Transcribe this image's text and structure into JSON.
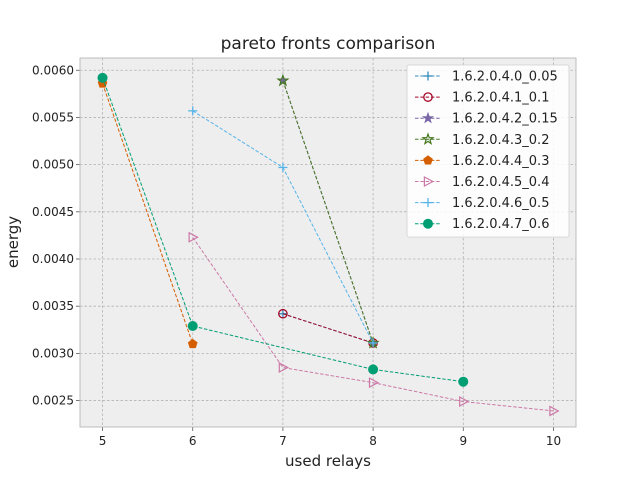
{
  "chart_data": {
    "type": "line",
    "title": "pareto fronts comparison",
    "xlabel": "used relays",
    "ylabel": "energy",
    "xlim": [
      4.75,
      10.25
    ],
    "ylim": [
      0.00222,
      0.00613
    ],
    "xticks": [
      5,
      6,
      7,
      8,
      9,
      10
    ],
    "yticks": [
      0.0025,
      0.003,
      0.0035,
      0.004,
      0.0045,
      0.005,
      0.0055,
      0.006
    ],
    "ytick_labels": [
      "0.0025",
      "0.0030",
      "0.0035",
      "0.0040",
      "0.0045",
      "0.0050",
      "0.0055",
      "0.0060"
    ],
    "grid": true,
    "legend_position": "top-right",
    "series": [
      {
        "name": "1.6.2.0.4.0_0.05",
        "color": "#348abd",
        "marker": "plus",
        "x": [
          7,
          8
        ],
        "y": [
          0.00342,
          0.00311
        ]
      },
      {
        "name": "1.6.2.0.4.1_0.1",
        "color": "#a60628",
        "marker": "circle-open",
        "x": [
          7,
          8
        ],
        "y": [
          0.00342,
          0.00311
        ]
      },
      {
        "name": "1.6.2.0.4.2_0.15",
        "color": "#7a68a6",
        "marker": "star",
        "x": [
          7,
          8
        ],
        "y": [
          0.00589,
          0.00311
        ]
      },
      {
        "name": "1.6.2.0.4.3_0.2",
        "color": "#467821",
        "marker": "star-open",
        "x": [
          7,
          8
        ],
        "y": [
          0.00589,
          0.00311
        ]
      },
      {
        "name": "1.6.2.0.4.4_0.3",
        "color": "#d55e00",
        "marker": "pentagon",
        "x": [
          5,
          6
        ],
        "y": [
          0.00586,
          0.0031
        ]
      },
      {
        "name": "1.6.2.0.4.5_0.4",
        "color": "#cc79a7",
        "marker": "triangle-right-open",
        "x": [
          6,
          7,
          8,
          9,
          10
        ],
        "y": [
          0.00423,
          0.00285,
          0.00269,
          0.00249,
          0.00239
        ]
      },
      {
        "name": "1.6.2.0.4.6_0.5",
        "color": "#56b4e9",
        "marker": "plus",
        "x": [
          6,
          7,
          8
        ],
        "y": [
          0.00557,
          0.00497,
          0.00311
        ]
      },
      {
        "name": "1.6.2.0.4.7_0.6",
        "color": "#009e73",
        "marker": "circle",
        "x": [
          5,
          6,
          8,
          9
        ],
        "y": [
          0.00592,
          0.00329,
          0.00283,
          0.0027
        ]
      }
    ]
  }
}
